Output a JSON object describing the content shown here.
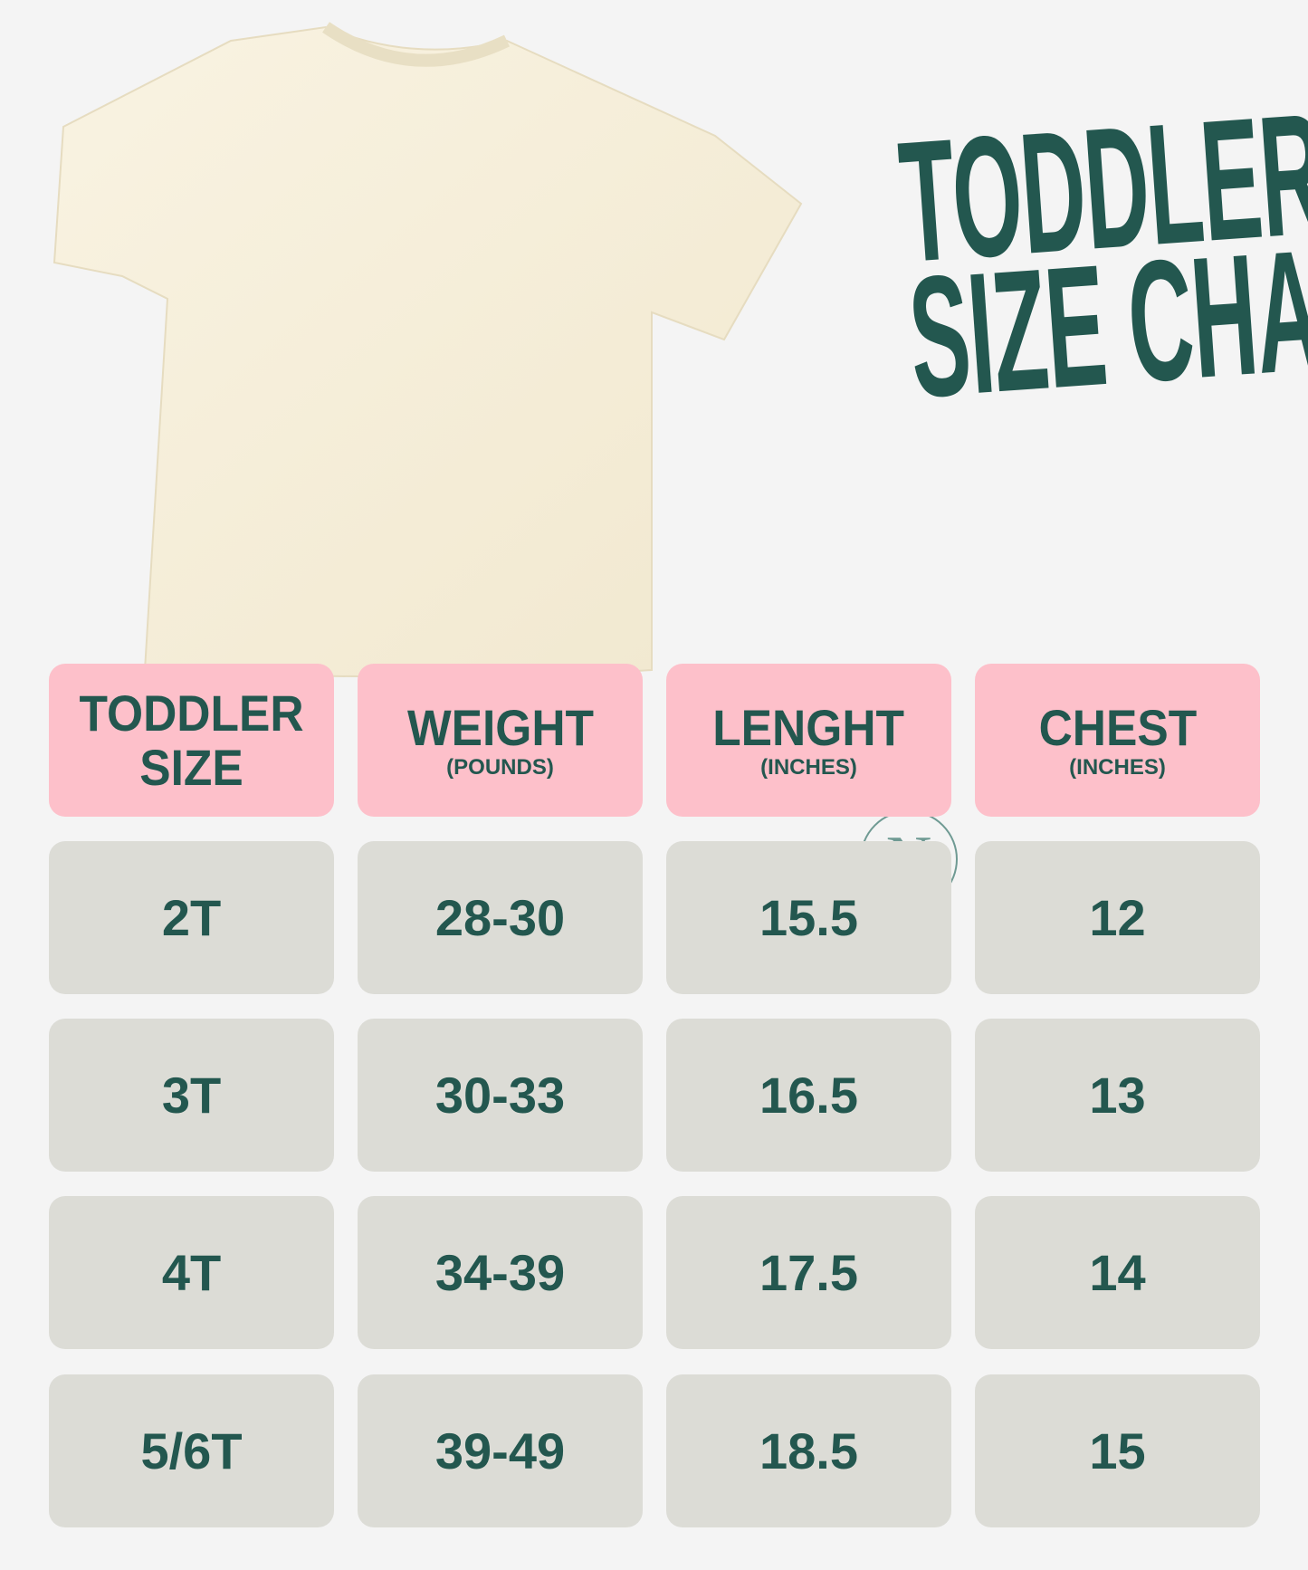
{
  "title": {
    "line1": "TODDLER",
    "line2": "SIZE CHART"
  },
  "watermark": "N",
  "colors": {
    "text": "#23574f",
    "header_bg": "#fdc0ca",
    "cell_bg": "#dcdcd6",
    "background": "#f4f4f4",
    "shirt": "#f7f0dc"
  },
  "table": {
    "headers": [
      {
        "main": "TODDLER SIZE",
        "sub": ""
      },
      {
        "main": "WEIGHT",
        "sub": "(POUNDS)"
      },
      {
        "main": "LENGHT",
        "sub": "(INCHES)"
      },
      {
        "main": "CHEST",
        "sub": "(INCHES)"
      }
    ],
    "rows": [
      [
        "2T",
        "28-30",
        "15.5",
        "12"
      ],
      [
        "3T",
        "30-33",
        "16.5",
        "13"
      ],
      [
        "4T",
        "34-39",
        "17.5",
        "14"
      ],
      [
        "5/6T",
        "39-49",
        "18.5",
        "15"
      ]
    ]
  }
}
